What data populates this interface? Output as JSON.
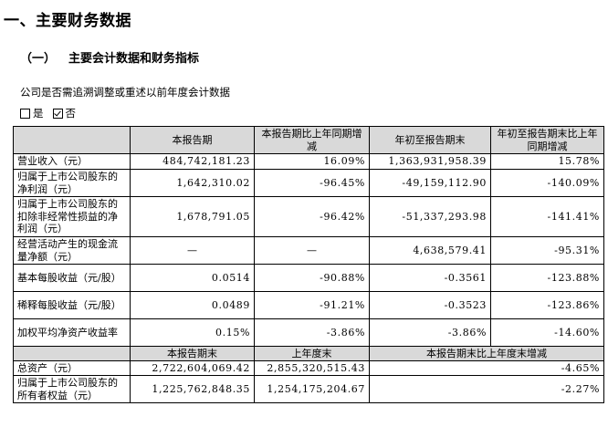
{
  "heading": "一、主要财务数据",
  "subheading": {
    "num": "（一）",
    "title": "主要会计数据和财务指标"
  },
  "question": "公司是否需追溯调整或重述以前年度会计数据",
  "options": [
    {
      "label": "是",
      "checked": false
    },
    {
      "label": "否",
      "checked": true
    }
  ],
  "table1": {
    "headers": [
      "",
      "本报告期",
      "本报告期比上年同期增减",
      "年初至报告期末",
      "年初至报告期末比上年同期增减"
    ],
    "rows": [
      {
        "label": "营业收入（元）",
        "cur": "484,742,181.23",
        "chg": "16.09%",
        "ytd": "1,363,931,958.39",
        "ytd_chg": "15.78%"
      },
      {
        "label": "归属于上市公司股东的净利润（元）",
        "cur": "1,642,310.02",
        "chg": "-96.45%",
        "ytd": "-49,159,112.90",
        "ytd_chg": "-140.09%"
      },
      {
        "label": "归属于上市公司股东的扣除非经常性损益的净利润（元）",
        "cur": "1,678,791.05",
        "chg": "-96.42%",
        "ytd": "-51,337,293.98",
        "ytd_chg": "-141.41%"
      },
      {
        "label": "经营活动产生的现金流量净额（元）",
        "cur": "—",
        "chg": "—",
        "ytd": "4,638,579.41",
        "ytd_chg": "-95.31%"
      },
      {
        "label": "基本每股收益（元/股）",
        "cur": "0.0514",
        "chg": "-90.88%",
        "ytd": "-0.3561",
        "ytd_chg": "-123.88%"
      },
      {
        "label": "稀释每股收益（元/股）",
        "cur": "0.0489",
        "chg": "-91.21%",
        "ytd": "-0.3523",
        "ytd_chg": "-123.86%"
      },
      {
        "label": "加权平均净资产收益率",
        "cur": "0.15%",
        "chg": "-3.86%",
        "ytd": "-3.86%",
        "ytd_chg": "-14.60%"
      }
    ]
  },
  "table2": {
    "headers": [
      "",
      "本报告期末",
      "上年度末",
      "本报告期末比上年度末增减"
    ],
    "rows": [
      {
        "label": "总资产（元）",
        "cur": "2,722,604,069.42",
        "prev": "2,855,320,515.43",
        "chg": "-4.65%"
      },
      {
        "label": "归属于上市公司股东的所有者权益（元）",
        "cur": "1,225,762,848.35",
        "prev": "1,254,175,204.67",
        "chg": "-2.27%"
      }
    ]
  }
}
